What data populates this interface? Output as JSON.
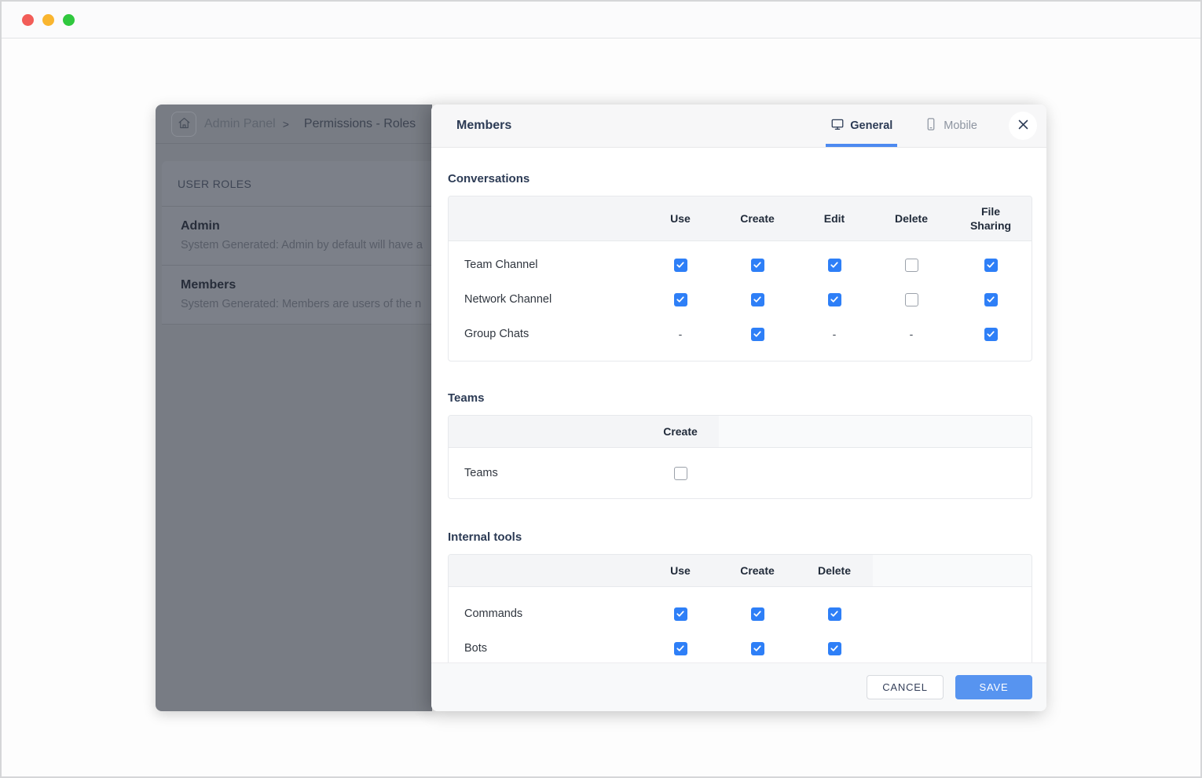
{
  "browser": {
    "traffic_lights": [
      "#f25d58",
      "#f9b52f",
      "#30c83e"
    ]
  },
  "sidebar": {
    "breadcrumb": {
      "root": "Admin Panel",
      "separator": ">",
      "current": "Permissions - Roles"
    },
    "section_title": "USER ROLES",
    "roles": [
      {
        "name": "Admin",
        "description": "System Generated: Admin by default will have a"
      },
      {
        "name": "Members",
        "description": "System Generated: Members are users of the n"
      }
    ]
  },
  "modal": {
    "title": "Members",
    "tabs": [
      {
        "label": "General",
        "icon": "monitor-icon",
        "active": true
      },
      {
        "label": "Mobile",
        "icon": "mobile-icon",
        "active": false
      }
    ],
    "sections": [
      {
        "heading": "Conversations",
        "columns": [
          "Use",
          "Create",
          "Edit",
          "Delete",
          "File Sharing"
        ],
        "fill_last_column": true,
        "rows": [
          {
            "label": "Team Channel",
            "cells": [
              "checked",
              "checked",
              "checked",
              "unchecked",
              "checked"
            ]
          },
          {
            "label": "Network Channel",
            "cells": [
              "checked",
              "checked",
              "checked",
              "unchecked",
              "checked"
            ]
          },
          {
            "label": "Group Chats",
            "cells": [
              "dash",
              "checked",
              "dash",
              "dash",
              "checked"
            ]
          }
        ]
      },
      {
        "heading": "Teams",
        "columns": [
          "Create"
        ],
        "fill_last_column": false,
        "rows": [
          {
            "label": "Teams",
            "cells": [
              "unchecked"
            ]
          }
        ]
      },
      {
        "heading": "Internal tools",
        "columns": [
          "Use",
          "Create",
          "Delete"
        ],
        "fill_last_column": false,
        "rows": [
          {
            "label": "Commands",
            "cells": [
              "checked",
              "checked",
              "checked"
            ]
          },
          {
            "label": "Bots",
            "cells": [
              "checked",
              "checked",
              "checked"
            ]
          }
        ]
      }
    ],
    "footer": {
      "cancel_label": "CANCEL",
      "save_label": "SAVE"
    }
  },
  "colors": {
    "checkbox_checked": "#2e7ff7",
    "save_button": "#5794f0",
    "tab_underline": "#4d8af0",
    "dimmed_panel": "#787c84"
  }
}
